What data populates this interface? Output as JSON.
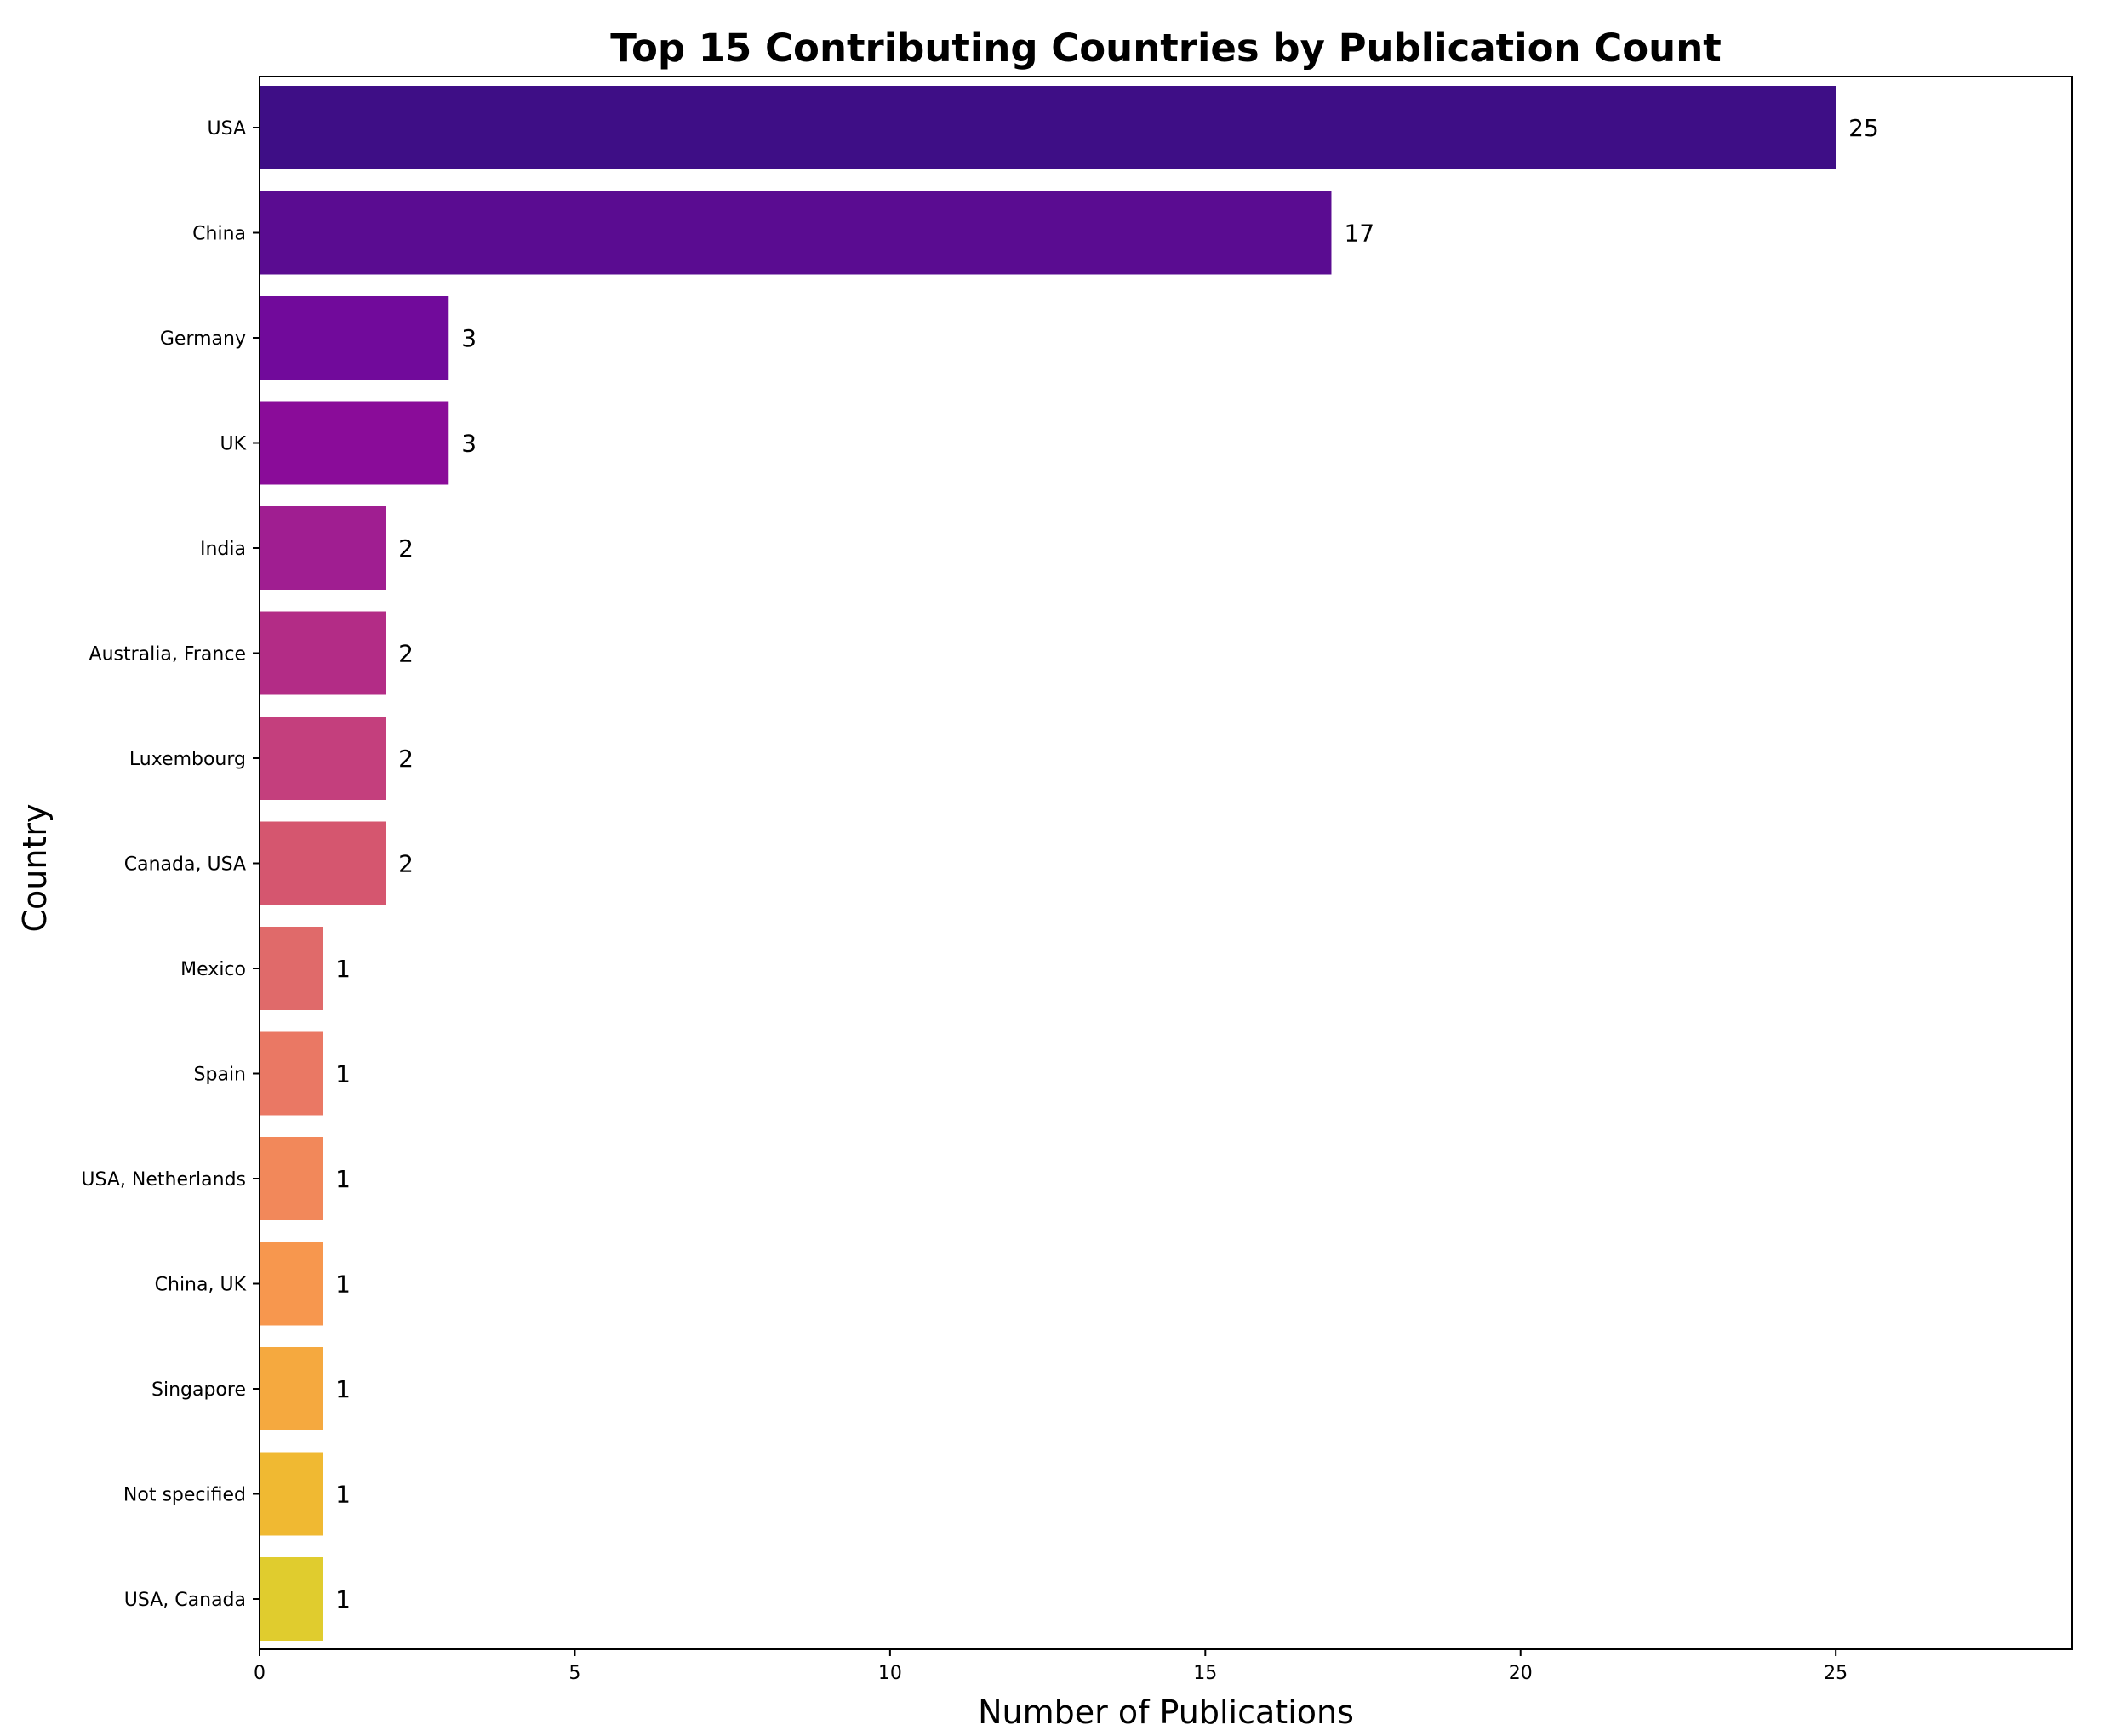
{
  "chart_data": {
    "type": "bar",
    "orientation": "horizontal",
    "title": "Top 15 Contributing Countries by Publication Count",
    "xlabel": "Number of Publications",
    "ylabel": "Country",
    "xlim": [
      0,
      28.75
    ],
    "xticks": [
      0,
      5,
      10,
      15,
      20,
      25
    ],
    "grid": false,
    "legend": "none",
    "colormap": "plasma",
    "categories": [
      "USA",
      "China",
      "Germany",
      "UK",
      "India",
      "Australia, France",
      "Luxembourg",
      "Canada, USA",
      "Mexico",
      "Spain",
      "USA, Netherlands",
      "China, UK",
      "Singapore",
      "Not specified",
      "USA, Canada"
    ],
    "values": [
      25,
      17,
      3,
      3,
      2,
      2,
      2,
      2,
      1,
      1,
      1,
      1,
      1,
      1,
      1
    ],
    "colors": [
      "#3e0e86",
      "#5a0c91",
      "#710a9b",
      "#8a0c99",
      "#a01e91",
      "#b32c86",
      "#c43f7d",
      "#d5566f",
      "#e06a6a",
      "#ea7864",
      "#f2885a",
      "#f7974e",
      "#f5a93f",
      "#f0b932",
      "#e0cc2e"
    ]
  }
}
